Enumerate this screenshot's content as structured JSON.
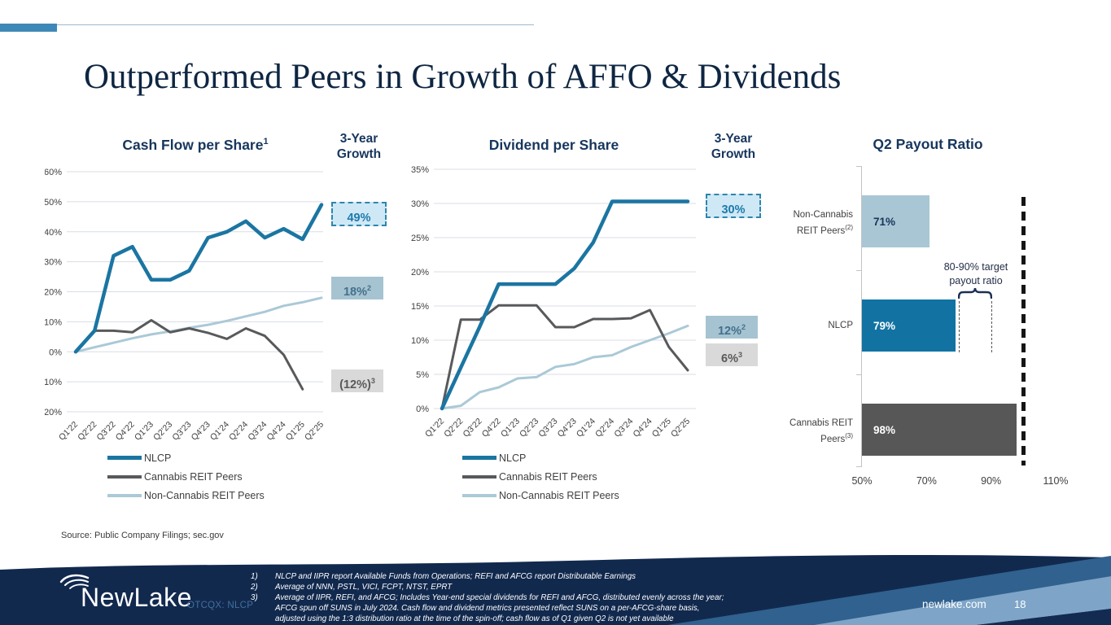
{
  "slide": {
    "title": "Outperformed Peers in Growth of AFFO & Dividends",
    "source": "Source: Public Company Filings; sec.gov",
    "website": "newlake.com",
    "page_number": "18",
    "ticker": "OTCQX: NLCP",
    "logo_text": "NewLake"
  },
  "colors": {
    "nlcp_blue": "#1b75a2",
    "cannabis_gray": "#58595b",
    "non_cannabis_light_blue": "#abc9d7",
    "navy_text": "#17365d",
    "accent_bar": "#3e88b8",
    "callout_highlight_fill": "#cfe8f5",
    "callout_highlight_border": "#2e86ad",
    "callout_steel_fill": "#a6c3d1",
    "callout_gray_fill": "#d9d9d9",
    "footer_navy": "#12294e"
  },
  "chart_data": [
    {
      "type": "line",
      "title": "Cash Flow per Share",
      "title_sup": "1",
      "growth_header": "3-Year Growth",
      "categories": [
        "Q1'22",
        "Q2'22",
        "Q3'22",
        "Q4'22",
        "Q1'23",
        "Q2'23",
        "Q3'23",
        "Q4'23",
        "Q1'24",
        "Q2'24",
        "Q3'24",
        "Q4'24",
        "Q1'25",
        "Q2'25"
      ],
      "ylim": [
        -20,
        60
      ],
      "yticks": [
        60,
        50,
        40,
        30,
        20,
        10,
        0,
        -10,
        -20
      ],
      "series": [
        {
          "name": "NLCP",
          "color": "#1b75a2",
          "values": [
            0,
            7,
            32,
            35,
            24,
            24,
            27,
            38,
            40,
            43.5,
            38,
            41,
            37.5,
            49
          ]
        },
        {
          "name": "Cannabis REIT Peers",
          "color": "#58595b",
          "values": [
            0,
            7,
            7,
            6.5,
            10.5,
            6.5,
            7.8,
            6.3,
            4.3,
            7.8,
            5.3,
            -1,
            -12.5
          ]
        },
        {
          "name": "Non-Cannabis REIT Peers",
          "color": "#abc9d7",
          "values": [
            0,
            1.5,
            3,
            4.5,
            5.8,
            6.8,
            8,
            9,
            10.3,
            11.8,
            13.3,
            15.3,
            16.5,
            18
          ]
        }
      ],
      "callouts": [
        {
          "label": "49%",
          "sup": "",
          "style": "highlight"
        },
        {
          "label": "18%",
          "sup": "2",
          "style": "steel"
        },
        {
          "label": "(12%)",
          "sup": "3",
          "style": "gray"
        }
      ]
    },
    {
      "type": "line",
      "title": "Dividend per Share",
      "title_sup": "",
      "growth_header": "3-Year Growth",
      "categories": [
        "Q1'22",
        "Q2'22",
        "Q3'22",
        "Q4'22",
        "Q1'23",
        "Q2'23",
        "Q3'23",
        "Q4'23",
        "Q1'24",
        "Q2'24",
        "Q3'24",
        "Q4'24",
        "Q1'25",
        "Q2'25"
      ],
      "ylim": [
        0,
        35
      ],
      "yticks": [
        35,
        30,
        25,
        20,
        15,
        10,
        5,
        0
      ],
      "series": [
        {
          "name": "NLCP",
          "color": "#1b75a2",
          "values": [
            0,
            6,
            12,
            18.2,
            18.2,
            18.2,
            18.2,
            20.5,
            24.3,
            30.3,
            30.3,
            30.3,
            30.3,
            30.3
          ]
        },
        {
          "name": "Cannabis REIT Peers",
          "color": "#58595b",
          "values": [
            0,
            13,
            13,
            15.1,
            15.1,
            15.1,
            11.9,
            11.9,
            13.1,
            13.1,
            13.2,
            14.4,
            9,
            5.6
          ]
        },
        {
          "name": "Non-Cannabis REIT Peers",
          "color": "#abc9d7",
          "values": [
            0,
            0.4,
            2.4,
            3.1,
            4.4,
            4.6,
            6.1,
            6.5,
            7.5,
            7.8,
            9,
            10,
            11,
            12.1
          ]
        }
      ],
      "callouts": [
        {
          "label": "30%",
          "sup": "",
          "style": "highlight"
        },
        {
          "label": "12%",
          "sup": "2",
          "style": "steel"
        },
        {
          "label": "6%",
          "sup": "3",
          "style": "gray"
        }
      ]
    },
    {
      "type": "bar",
      "title": "Q2 Payout Ratio",
      "categories": [
        {
          "line1": "Non-Cannabis",
          "line2": "REIT Peers",
          "sup": "(2)"
        },
        {
          "line1": "NLCP",
          "line2": "",
          "sup": ""
        },
        {
          "line1": "Cannabis REIT",
          "line2": "Peers",
          "sup": "(3)"
        }
      ],
      "values": [
        71,
        79,
        98
      ],
      "value_labels": [
        "71%",
        "79%",
        "98%"
      ],
      "bar_colors": [
        "#a9c6d4",
        "#1273a3",
        "#575757"
      ],
      "label_colors": [
        "#17365d",
        "#ffffff",
        "#ffffff"
      ],
      "xlim": [
        50,
        110
      ],
      "xticks": [
        {
          "label": "50%",
          "value": 50
        },
        {
          "label": "70%",
          "value": 70
        },
        {
          "label": "90%",
          "value": 90
        },
        {
          "label": "110%",
          "value": 110
        }
      ],
      "annotation": {
        "line1": "80-90% target",
        "line2": "payout ratio",
        "range": [
          80,
          90
        ]
      },
      "reference_line": 100
    }
  ],
  "footnotes": [
    {
      "num": "1)",
      "text": "NLCP and IIPR report Available Funds from Operations; REFI and AFCG report Distributable Earnings"
    },
    {
      "num": "2)",
      "text": "Average of NNN, PSTL, VICI, FCPT, NTST, EPRT"
    },
    {
      "num": "3)",
      "text": "Average of IIPR, REFI, and AFCG; Includes Year-end special dividends for REFI and AFCG, distributed evenly across the year; AFCG spun off SUNS in July 2024. Cash flow and dividend metrics presented reflect SUNS on a per-AFCG-share basis, adjusted using the 1:3 distribution ratio at the time of the spin-off; cash flow as of Q1 given Q2 is not yet available"
    }
  ]
}
